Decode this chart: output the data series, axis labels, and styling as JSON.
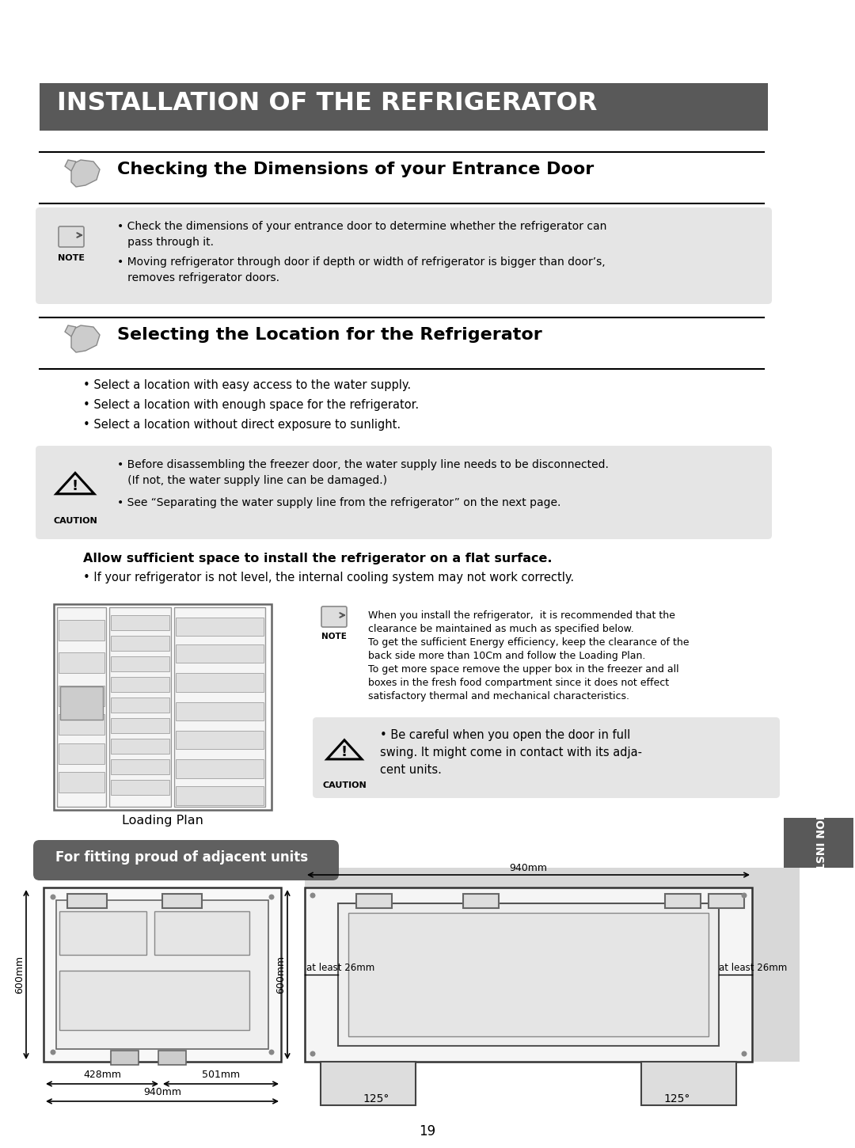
{
  "title_bar_text": "INSTALLATION OF THE REFRIGERATOR",
  "title_bar_bg": "#595959",
  "title_bar_text_color": "#ffffff",
  "section1_title": "Checking the Dimensions of your Entrance Door",
  "section2_title": "Selecting the Location for the Refrigerator",
  "section2_bullets": [
    "• Select a location with easy access to the water supply.",
    "• Select a location with enough space for the refrigerator.",
    "• Select a location without direct exposure to sunlight."
  ],
  "note1_line1": "• Check the dimensions of your entrance door to determine whether the refrigerator can",
  "note1_line2": "   pass through it.",
  "note1_line3": "• Moving refrigerator through door if depth or width of refrigerator is bigger than door’s,",
  "note1_line4": "   removes refrigerator doors.",
  "caution1_line1": "• Before disassembling the freezer door, the water supply line needs to be disconnected.",
  "caution1_line2": "   (If not, the water supply line can be damaged.)",
  "caution1_line3": "• See “Separating the water supply line from the refrigerator” on the next page.",
  "flat_bold": "Allow sufficient space to install the refrigerator on a flat surface.",
  "flat_bullet": "• If your refrigerator is not level, the internal cooling system may not work correctly.",
  "note2_lines": [
    "When you install the refrigerator,  it is recommended that the",
    "clearance be maintained as much as specified below.",
    "To get the sufficient Energy efficiency, keep the clearance of the",
    "back side more than 10Cm and follow the Loading Plan.",
    "To get more space remove the upper box in the freezer and all",
    "boxes in the fresh food compartment since it does not effect",
    "satisfactory thermal and mechanical characteristics."
  ],
  "caution2_line1": "• Be careful when you open the door in full",
  "caution2_line2": "swing. It might come in contact with its adja-",
  "caution2_line3": "cent units.",
  "loading_plan_label": "Loading Plan",
  "fitting_label": "For fitting proud of adjacent units",
  "fitting_label_bg": "#606060",
  "fitting_label_text_color": "#ffffff",
  "page_number": "19",
  "sidebar_text": "INSTALLATION INSTRUCTIONS",
  "sidebar_bg": "#595959",
  "sidebar_text_color": "#ffffff",
  "bg_color": "#ffffff",
  "note_bg": "#e5e5e5",
  "caution_bg": "#e5e5e5"
}
